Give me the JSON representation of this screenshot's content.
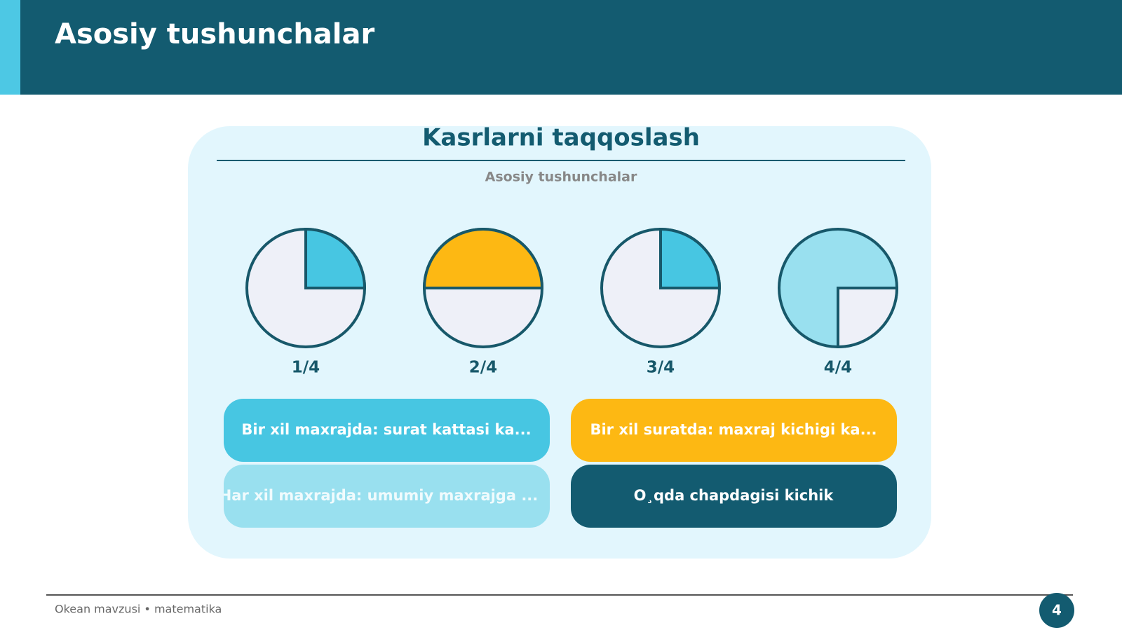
{
  "header": {
    "title": "Asosiy tushunchalar"
  },
  "card": {
    "title": "Kasrlarni taqqoslash",
    "subtitle": "Asosiy tushunchalar",
    "fractions": [
      "1/4",
      "2/4",
      "3/4",
      "4/4"
    ],
    "rules": [
      "Bir xil maxrajda: surat kattasi ka...",
      "Bir xil suratda: maxraj kichigi ka...",
      "Har xil maxrajda: umumiy maxrajga ...",
      "O¸qda chapdagisi kichik"
    ]
  },
  "footer": {
    "text": "Okean mavzusi • matematika",
    "page": "4"
  }
}
